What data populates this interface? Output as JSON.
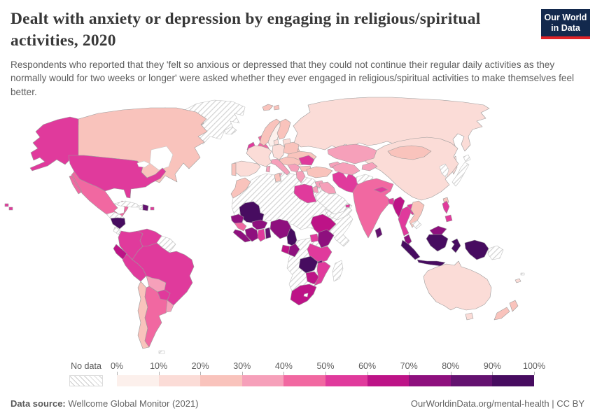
{
  "header": {
    "title": "Dealt with anxiety or depression by engaging in religious/spiritual activities, 2020",
    "subtitle": "Respondents who reported that they 'felt so anxious or depressed that they could not continue their regular daily activities as they normally would for two weeks or longer' were asked whether they ever engaged in religious/spiritual activities to make themselves feel better.",
    "logo": {
      "line1": "Our World",
      "line2": "in Data",
      "bg": "#13294d",
      "accent": "#e02327"
    }
  },
  "footer": {
    "source_label": "Data source:",
    "source_value": " Wellcome Global Monitor (2021)",
    "link_text": "OurWorldinData.org/mental-health | CC BY"
  },
  "chart_data": {
    "type": "heatmap",
    "subtype": "world-choropleth",
    "title": "Dealt with anxiety or depression by engaging in religious/spiritual activities, 2020",
    "unit": "%",
    "legend": {
      "no_data_label": "No data",
      "tick_labels": [
        "0%",
        "10%",
        "20%",
        "30%",
        "40%",
        "50%",
        "60%",
        "70%",
        "80%",
        "90%",
        "100%"
      ],
      "bucket_labels": [
        "0-10%",
        "10-20%",
        "20-30%",
        "30-40%",
        "40-50%",
        "50-60%",
        "60-70%",
        "70-80%",
        "80-90%",
        "90-100%"
      ],
      "bucket_colors": [
        "#fcf0ec",
        "#fbdcd7",
        "#f9c3bc",
        "#f6a0ba",
        "#f168a1",
        "#e03a9c",
        "#bd1387",
        "#8e107e",
        "#641270",
        "#470c60"
      ]
    },
    "regions": [
      {
        "id": "greenland",
        "label": "Greenland",
        "bucket": "nodata"
      },
      {
        "id": "canada-arctic",
        "label": "Canadian Arctic",
        "bucket": 2
      },
      {
        "id": "canada",
        "label": "Canada",
        "bucket": 2
      },
      {
        "id": "alaska",
        "label": "United States (Alaska)",
        "bucket": 5
      },
      {
        "id": "usa",
        "label": "United States",
        "bucket": 5
      },
      {
        "id": "hawaii",
        "label": "United States (Hawaii)",
        "bucket": 5
      },
      {
        "id": "mexico",
        "label": "Mexico",
        "bucket": 4
      },
      {
        "id": "guatemala-honduras",
        "label": "Guatemala & Honduras",
        "bucket": "nodata"
      },
      {
        "id": "nicaragua",
        "label": "Nicaragua",
        "bucket": 9
      },
      {
        "id": "costa-rica",
        "label": "Costa Rica",
        "bucket": "nodata"
      },
      {
        "id": "panama",
        "label": "Panama",
        "bucket": 6
      },
      {
        "id": "cuba",
        "label": "Cuba",
        "bucket": "nodata"
      },
      {
        "id": "haiti",
        "label": "Haiti",
        "bucket": "nodata"
      },
      {
        "id": "dominican-republic",
        "label": "Dominican Republic",
        "bucket": 8
      },
      {
        "id": "puerto-rico",
        "label": "Puerto Rico",
        "bucket": 5
      },
      {
        "id": "colombia",
        "label": "Colombia",
        "bucket": 5
      },
      {
        "id": "venezuela",
        "label": "Venezuela",
        "bucket": 5
      },
      {
        "id": "guyanas",
        "label": "Guyana & Suriname",
        "bucket": "nodata"
      },
      {
        "id": "ecuador",
        "label": "Ecuador",
        "bucket": 6
      },
      {
        "id": "peru",
        "label": "Peru",
        "bucket": 5
      },
      {
        "id": "brazil",
        "label": "Brazil",
        "bucket": 5
      },
      {
        "id": "bolivia",
        "label": "Bolivia",
        "bucket": 3
      },
      {
        "id": "paraguay",
        "label": "Paraguay",
        "bucket": 5
      },
      {
        "id": "chile",
        "label": "Chile",
        "bucket": 2
      },
      {
        "id": "argentina",
        "label": "Argentina",
        "bucket": 4
      },
      {
        "id": "uruguay",
        "label": "Uruguay",
        "bucket": 3
      },
      {
        "id": "falklands",
        "label": "Falkland Islands",
        "bucket": "nodata"
      },
      {
        "id": "iceland",
        "label": "Iceland",
        "bucket": "nodata"
      },
      {
        "id": "svalbard",
        "label": "Svalbard",
        "bucket": 2
      },
      {
        "id": "ireland",
        "label": "Ireland",
        "bucket": 5
      },
      {
        "id": "uk",
        "label": "United Kingdom",
        "bucket": 4
      },
      {
        "id": "norway",
        "label": "Norway",
        "bucket": 2
      },
      {
        "id": "sweden",
        "label": "Sweden",
        "bucket": 0
      },
      {
        "id": "finland",
        "label": "Finland",
        "bucket": 2
      },
      {
        "id": "denmark",
        "label": "Denmark",
        "bucket": 1
      },
      {
        "id": "baltics",
        "label": "Baltic states",
        "bucket": 1
      },
      {
        "id": "belarus",
        "label": "Belarus",
        "bucket": 2
      },
      {
        "id": "ukraine",
        "label": "Ukraine",
        "bucket": 2
      },
      {
        "id": "france",
        "label": "France",
        "bucket": 1
      },
      {
        "id": "spain",
        "label": "Spain",
        "bucket": 1
      },
      {
        "id": "portugal",
        "label": "Portugal",
        "bucket": 2
      },
      {
        "id": "germany",
        "label": "Germany",
        "bucket": 1
      },
      {
        "id": "poland",
        "label": "Poland",
        "bucket": 2
      },
      {
        "id": "central-europe",
        "label": "Central Europe",
        "bucket": 2
      },
      {
        "id": "italy",
        "label": "Italy",
        "bucket": 3
      },
      {
        "id": "balkans",
        "label": "Western Balkans",
        "bucket": 3
      },
      {
        "id": "romania",
        "label": "Romania",
        "bucket": 5
      },
      {
        "id": "bulgaria",
        "label": "Bulgaria",
        "bucket": 2
      },
      {
        "id": "greece",
        "label": "Greece",
        "bucket": 3
      },
      {
        "id": "russia",
        "label": "Russia",
        "bucket": 1
      },
      {
        "id": "koreas",
        "label": "Korea",
        "bucket": "nodata"
      },
      {
        "id": "japan",
        "label": "Japan",
        "bucket": "nodata"
      },
      {
        "id": "taiwan",
        "label": "Taiwan",
        "bucket": 2
      },
      {
        "id": "turkey",
        "label": "Turkey",
        "bucket": 2
      },
      {
        "id": "caucasus",
        "label": "Caucasus",
        "bucket": 3
      },
      {
        "id": "syria",
        "label": "Syria",
        "bucket": 3
      },
      {
        "id": "israel-jordan",
        "label": "Israel & Jordan",
        "bucket": 3
      },
      {
        "id": "iraq",
        "label": "Iraq",
        "bucket": 3
      },
      {
        "id": "iran",
        "label": "Iran",
        "bucket": 5
      },
      {
        "id": "saudi-arabia",
        "label": "Saudi Arabia",
        "bucket": "nodata"
      },
      {
        "id": "uae",
        "label": "United Arab Emirates",
        "bucket": 5
      },
      {
        "id": "yemen-oman",
        "label": "Yemen & Oman",
        "bucket": "nodata"
      },
      {
        "id": "afghanistan",
        "label": "Afghanistan",
        "bucket": "nodata"
      },
      {
        "id": "pakistan",
        "label": "Pakistan",
        "bucket": "nodata"
      },
      {
        "id": "kazakhstan",
        "label": "Kazakhstan",
        "bucket": 3
      },
      {
        "id": "uzbek-turkmen",
        "label": "Uzbekistan & Turkmenistan",
        "bucket": 3
      },
      {
        "id": "kyrgyz-tajik",
        "label": "Kyrgyzstan & Tajikistan",
        "bucket": 3
      },
      {
        "id": "china",
        "label": "China",
        "bucket": 1
      },
      {
        "id": "mongolia",
        "label": "Mongolia",
        "bucket": 2
      },
      {
        "id": "india",
        "label": "India",
        "bucket": 4
      },
      {
        "id": "nepal",
        "label": "Nepal",
        "bucket": 5
      },
      {
        "id": "bangladesh",
        "label": "Bangladesh",
        "bucket": 5
      },
      {
        "id": "sri-lanka",
        "label": "Sri Lanka",
        "bucket": 8
      },
      {
        "id": "myanmar",
        "label": "Myanmar",
        "bucket": 6
      },
      {
        "id": "thailand",
        "label": "Thailand",
        "bucket": 5
      },
      {
        "id": "laos",
        "label": "Laos",
        "bucket": 5
      },
      {
        "id": "vietnam",
        "label": "Vietnam",
        "bucket": 2
      },
      {
        "id": "cambodia",
        "label": "Cambodia",
        "bucket": "nodata"
      },
      {
        "id": "malaysia",
        "label": "Malaysia",
        "bucket": 7
      },
      {
        "id": "indonesia",
        "label": "Indonesia",
        "bucket": 9
      },
      {
        "id": "philippines",
        "label": "Philippines",
        "bucket": 5
      },
      {
        "id": "png",
        "label": "Papua New Guinea",
        "bucket": "nodata"
      },
      {
        "id": "sahara",
        "label": "North Africa no-data band",
        "bucket": "nodata"
      },
      {
        "id": "southern-africa-block",
        "label": "Central & Southern Africa no-data band",
        "bucket": "nodata"
      },
      {
        "id": "madagascar",
        "label": "Madagascar",
        "bucket": "nodata"
      },
      {
        "id": "morocco",
        "label": "Morocco",
        "bucket": 2
      },
      {
        "id": "tunisia",
        "label": "Tunisia",
        "bucket": 2
      },
      {
        "id": "egypt",
        "label": "Egypt",
        "bucket": 5
      },
      {
        "id": "mali",
        "label": "Mali",
        "bucket": 9
      },
      {
        "id": "senegal",
        "label": "Senegal",
        "bucket": 7
      },
      {
        "id": "guinea",
        "label": "Guinea",
        "bucket": 4
      },
      {
        "id": "sierra-leone-liberia",
        "label": "Sierra Leone & Liberia",
        "bucket": 7
      },
      {
        "id": "ivory-coast",
        "label": "Côte d'Ivoire",
        "bucket": 7
      },
      {
        "id": "ghana",
        "label": "Ghana",
        "bucket": 5
      },
      {
        "id": "burkina-faso",
        "label": "Burkina Faso",
        "bucket": 7
      },
      {
        "id": "togo-benin",
        "label": "Togo & Benin",
        "bucket": 8
      },
      {
        "id": "nigeria",
        "label": "Nigeria",
        "bucket": 7
      },
      {
        "id": "cameroon",
        "label": "Cameroon",
        "bucket": 9
      },
      {
        "id": "gabon",
        "label": "Gabon",
        "bucket": 6
      },
      {
        "id": "congo",
        "label": "Congo",
        "bucket": 7
      },
      {
        "id": "ethiopia",
        "label": "Ethiopia",
        "bucket": 6
      },
      {
        "id": "uganda",
        "label": "Uganda",
        "bucket": 5
      },
      {
        "id": "kenya",
        "label": "Kenya",
        "bucket": 7
      },
      {
        "id": "tanzania",
        "label": "Tanzania",
        "bucket": 5
      },
      {
        "id": "zambia",
        "label": "Zambia",
        "bucket": 9
      },
      {
        "id": "malawi",
        "label": "Malawi",
        "bucket": 8
      },
      {
        "id": "zimbabwe",
        "label": "Zimbabwe",
        "bucket": 6
      },
      {
        "id": "mozambique",
        "label": "Mozambique",
        "bucket": 5
      },
      {
        "id": "south-africa",
        "label": "South Africa",
        "bucket": 6
      },
      {
        "id": "australia",
        "label": "Australia",
        "bucket": 1
      },
      {
        "id": "new-zealand",
        "label": "New Zealand",
        "bucket": 2
      },
      {
        "id": "fiji",
        "label": "Fiji",
        "bucket": "nodata"
      },
      {
        "id": "new-caledonia",
        "label": "New Caledonia",
        "bucket": 1
      }
    ]
  }
}
